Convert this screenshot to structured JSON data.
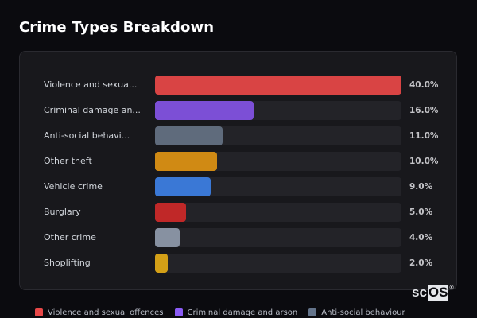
{
  "title": "Crime Types Breakdown",
  "logo": {
    "prefix": "sc",
    "highlight": "OS",
    "mark": "®"
  },
  "chart_data": {
    "type": "bar",
    "orientation": "horizontal",
    "title": "Crime Types Breakdown",
    "xlabel": "",
    "ylabel": "",
    "xlim": [
      0,
      40
    ],
    "grid": false,
    "legend_position": "bottom",
    "categories": [
      "Violence and sexual offences",
      "Criminal damage and arson",
      "Anti-social behaviour",
      "Other theft",
      "Vehicle crime",
      "Burglary",
      "Other crime",
      "Shoplifting"
    ],
    "display_labels": [
      "Violence and sexua...",
      "Criminal damage an...",
      "Anti-social behavi...",
      "Other theft",
      "Vehicle crime",
      "Burglary",
      "Other crime",
      "Shoplifting"
    ],
    "values": [
      40.0,
      16.0,
      11.0,
      10.0,
      9.0,
      5.0,
      4.0,
      2.0
    ],
    "value_labels": [
      "40.0%",
      "16.0%",
      "11.0%",
      "10.0%",
      "9.0%",
      "5.0%",
      "4.0%",
      "2.0%"
    ],
    "colors": [
      "#d94444",
      "#7c4fd6",
      "#5f6b7c",
      "#d08a14",
      "#3a78d6",
      "#c02828",
      "#8791a1",
      "#d4a017"
    ]
  },
  "legend": [
    {
      "label": "Violence and sexual offences",
      "color": "#e84848"
    },
    {
      "label": "Criminal damage and arson",
      "color": "#8b5cf6"
    },
    {
      "label": "Anti-social behaviour",
      "color": "#64748b"
    }
  ]
}
